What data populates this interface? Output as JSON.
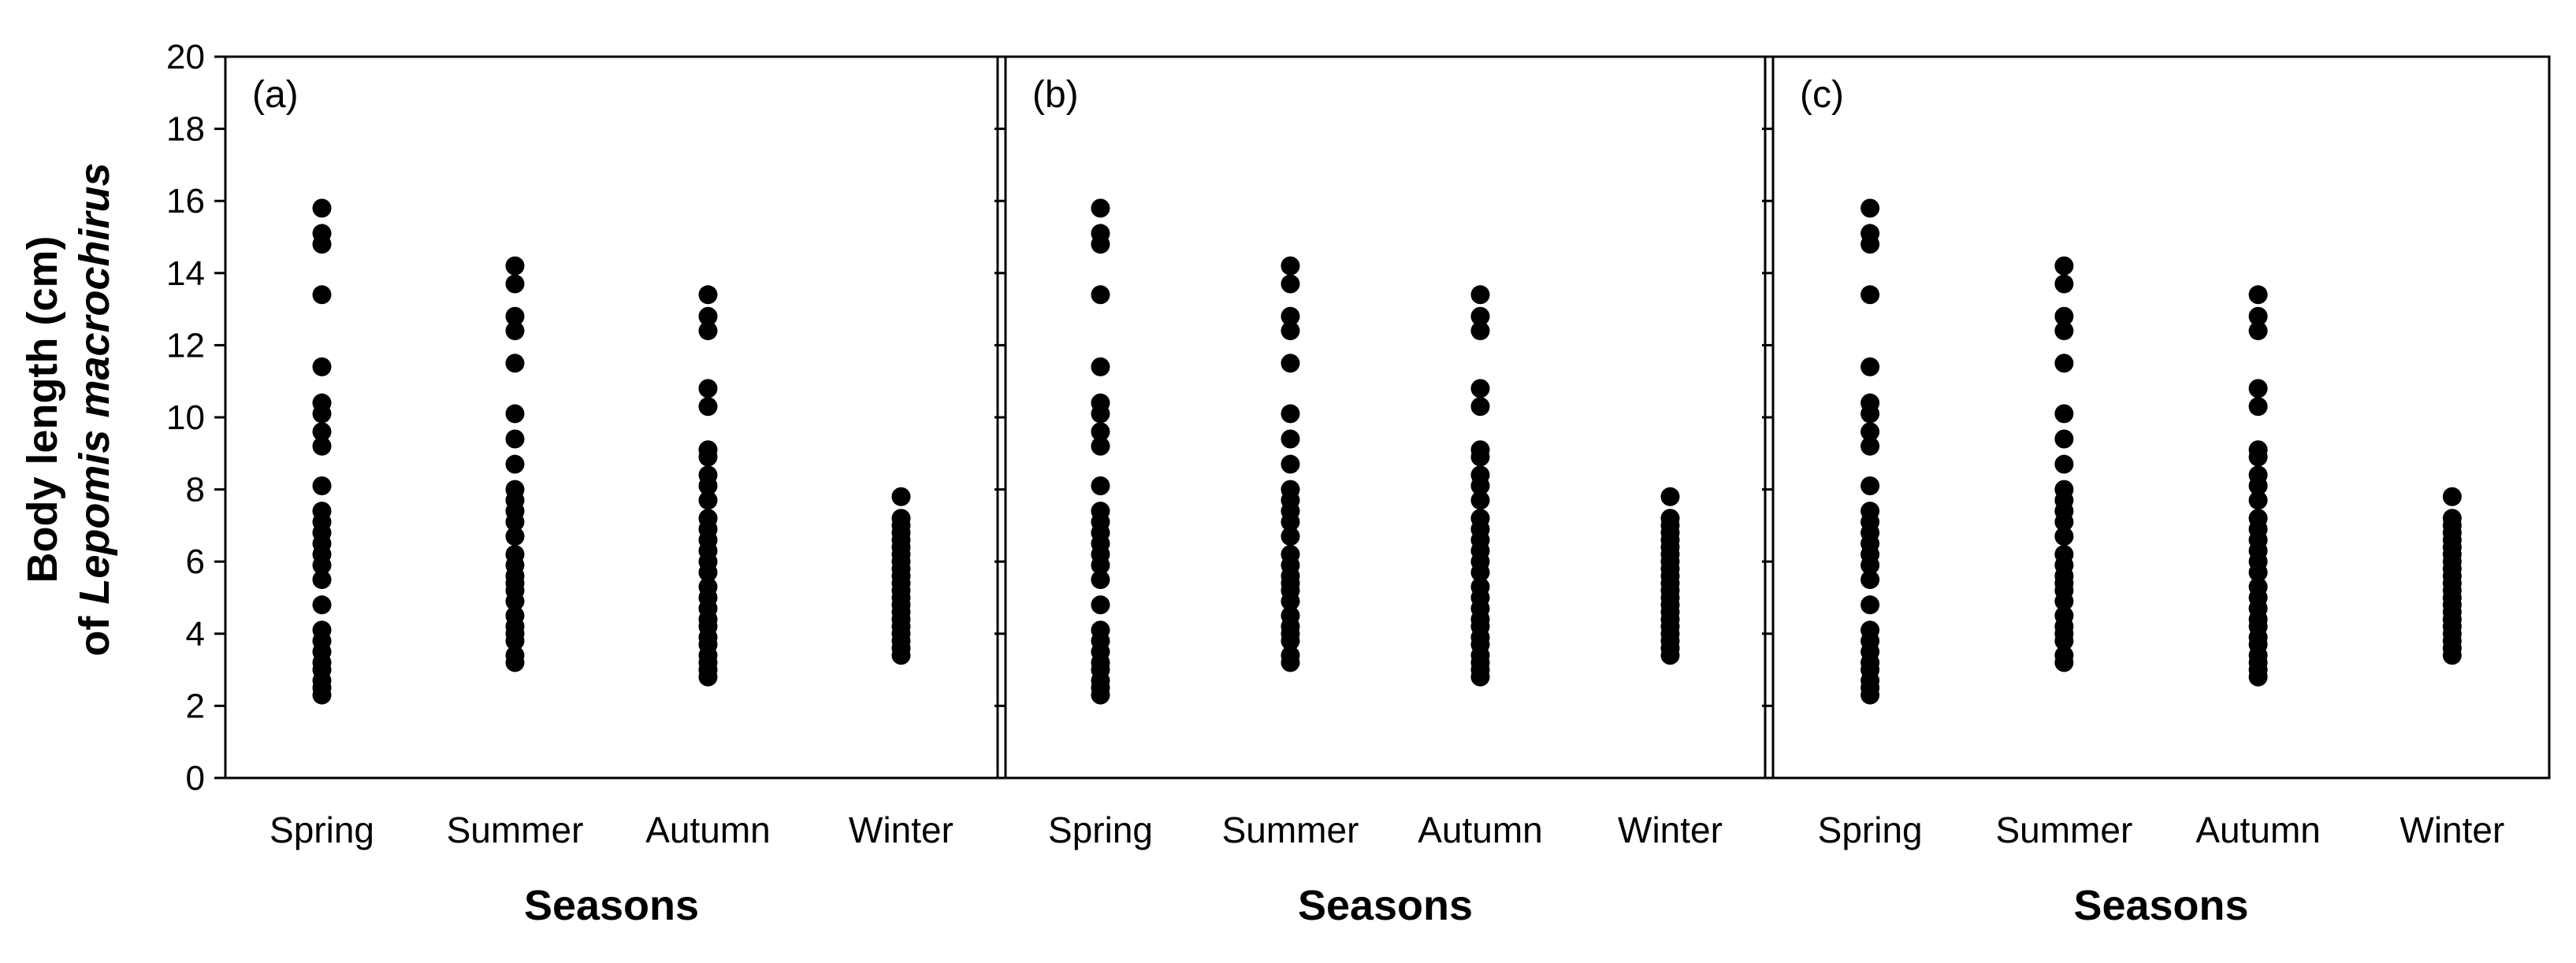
{
  "ylabel_line1": "Body length (cm)",
  "ylabel_line2_prefix": "of ",
  "ylabel_line2_species": "Lepomis macrochirus",
  "colors": {
    "points": "#000000",
    "axes": "#000000",
    "background": "#ffffff"
  },
  "chart_data": [
    {
      "type": "scatter",
      "panel_label": "(a)",
      "xlabel": "Seasons",
      "categories": [
        "Spring",
        "Summer",
        "Autumn",
        "Winter"
      ],
      "yticks": [
        0,
        2,
        4,
        6,
        8,
        10,
        12,
        14,
        16,
        18,
        20
      ],
      "ylim": [
        0,
        20
      ],
      "grid": false,
      "legend": "none",
      "series": [
        {
          "category": "Spring",
          "values": [
            15.8,
            15.1,
            14.8,
            13.4,
            11.4,
            10.4,
            10.1,
            9.6,
            9.2,
            8.1,
            7.4,
            7.1,
            6.8,
            6.5,
            6.2,
            5.9,
            5.5,
            4.8,
            4.1,
            3.8,
            3.5,
            3.2,
            3.0,
            2.7,
            2.5,
            2.3
          ]
        },
        {
          "category": "Summer",
          "values": [
            14.2,
            13.7,
            12.8,
            12.4,
            11.5,
            10.1,
            9.4,
            8.7,
            8.0,
            7.7,
            7.4,
            7.1,
            6.7,
            6.2,
            5.9,
            5.6,
            5.4,
            5.2,
            4.9,
            4.5,
            4.2,
            4.0,
            3.8,
            3.4,
            3.2
          ]
        },
        {
          "category": "Autumn",
          "values": [
            13.4,
            12.8,
            12.4,
            10.8,
            10.3,
            9.1,
            8.9,
            8.4,
            8.1,
            7.7,
            7.2,
            6.9,
            6.6,
            6.3,
            6.0,
            5.7,
            5.3,
            5.0,
            4.7,
            4.4,
            4.2,
            3.9,
            3.7,
            3.4,
            3.2,
            3.0,
            2.8
          ]
        },
        {
          "category": "Winter",
          "values": [
            7.8,
            7.2,
            7.0,
            6.8,
            6.6,
            6.4,
            6.2,
            6.0,
            5.8,
            5.6,
            5.4,
            5.2,
            5.0,
            4.8,
            4.6,
            4.4,
            4.2,
            4.0,
            3.8,
            3.6,
            3.4
          ]
        }
      ]
    },
    {
      "type": "scatter",
      "panel_label": "(b)",
      "xlabel": "Seasons",
      "categories": [
        "Spring",
        "Summer",
        "Autumn",
        "Winter"
      ],
      "ylim": [
        0,
        20
      ],
      "grid": false,
      "legend": "none",
      "series": [
        {
          "category": "Spring",
          "values": [
            15.8,
            15.1,
            14.8,
            13.4,
            11.4,
            10.4,
            10.1,
            9.6,
            9.2,
            8.1,
            7.4,
            7.1,
            6.8,
            6.5,
            6.2,
            5.9,
            5.5,
            4.8,
            4.1,
            3.8,
            3.5,
            3.2,
            3.0,
            2.7,
            2.5,
            2.3
          ]
        },
        {
          "category": "Summer",
          "values": [
            14.2,
            13.7,
            12.8,
            12.4,
            11.5,
            10.1,
            9.4,
            8.7,
            8.0,
            7.7,
            7.4,
            7.1,
            6.7,
            6.2,
            5.9,
            5.6,
            5.4,
            5.2,
            4.9,
            4.5,
            4.2,
            4.0,
            3.8,
            3.4,
            3.2
          ]
        },
        {
          "category": "Autumn",
          "values": [
            13.4,
            12.8,
            12.4,
            10.8,
            10.3,
            9.1,
            8.9,
            8.4,
            8.1,
            7.7,
            7.2,
            6.9,
            6.6,
            6.3,
            6.0,
            5.7,
            5.3,
            5.0,
            4.7,
            4.4,
            4.2,
            3.9,
            3.7,
            3.4,
            3.2,
            3.0,
            2.8
          ]
        },
        {
          "category": "Winter",
          "values": [
            7.8,
            7.2,
            7.0,
            6.8,
            6.6,
            6.4,
            6.2,
            6.0,
            5.8,
            5.6,
            5.4,
            5.2,
            5.0,
            4.8,
            4.6,
            4.4,
            4.2,
            4.0,
            3.8,
            3.6,
            3.4
          ]
        }
      ]
    },
    {
      "type": "scatter",
      "panel_label": "(c)",
      "xlabel": "Seasons",
      "categories": [
        "Spring",
        "Summer",
        "Autumn",
        "Winter"
      ],
      "ylim": [
        0,
        20
      ],
      "grid": false,
      "legend": "none",
      "series": [
        {
          "category": "Spring",
          "values": [
            15.8,
            15.1,
            14.8,
            13.4,
            11.4,
            10.4,
            10.1,
            9.6,
            9.2,
            8.1,
            7.4,
            7.1,
            6.8,
            6.5,
            6.2,
            5.9,
            5.5,
            4.8,
            4.1,
            3.8,
            3.5,
            3.2,
            3.0,
            2.7,
            2.5,
            2.3
          ]
        },
        {
          "category": "Summer",
          "values": [
            14.2,
            13.7,
            12.8,
            12.4,
            11.5,
            10.1,
            9.4,
            8.7,
            8.0,
            7.7,
            7.4,
            7.1,
            6.7,
            6.2,
            5.9,
            5.6,
            5.4,
            5.2,
            4.9,
            4.5,
            4.2,
            4.0,
            3.8,
            3.4,
            3.2
          ]
        },
        {
          "category": "Autumn",
          "values": [
            13.4,
            12.8,
            12.4,
            10.8,
            10.3,
            9.1,
            8.9,
            8.4,
            8.1,
            7.7,
            7.2,
            6.9,
            6.6,
            6.3,
            6.0,
            5.7,
            5.3,
            5.0,
            4.7,
            4.4,
            4.2,
            3.9,
            3.7,
            3.4,
            3.2,
            3.0,
            2.8
          ]
        },
        {
          "category": "Winter",
          "values": [
            7.8,
            7.2,
            7.0,
            6.8,
            6.6,
            6.4,
            6.2,
            6.0,
            5.8,
            5.6,
            5.4,
            5.2,
            5.0,
            4.8,
            4.6,
            4.4,
            4.2,
            4.0,
            3.8,
            3.6,
            3.4
          ]
        }
      ]
    }
  ]
}
